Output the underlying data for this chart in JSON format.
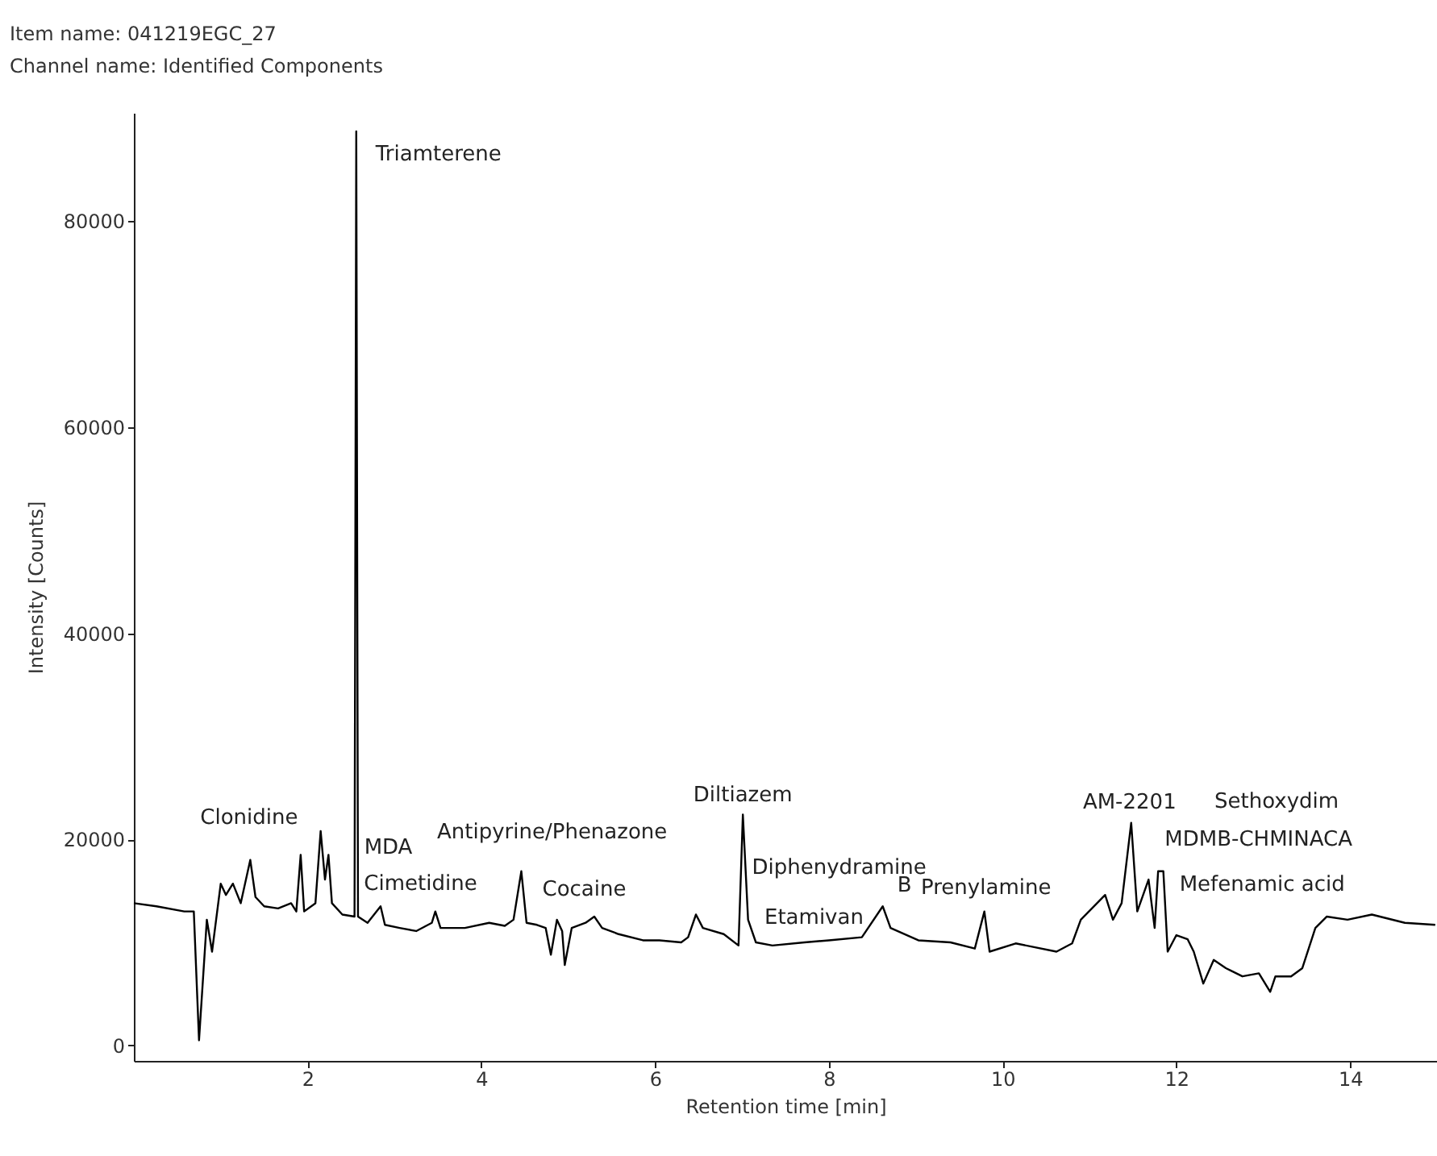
{
  "chart_data": {
    "type": "line",
    "title": "Item name: 041219EGC_27",
    "subtitle": "Channel name: Identified Components",
    "xlabel": "Retention time [min]",
    "ylabel": "Intensity [Counts]",
    "xlim": [
      0,
      15
    ],
    "ylim": [
      -1500,
      90500
    ],
    "xticks": [
      2,
      4,
      6,
      8,
      10,
      12,
      14
    ],
    "yticks": [
      0,
      20000,
      40000,
      60000,
      80000
    ],
    "grid": false,
    "legend": false,
    "marker": "none",
    "line_style": "solid",
    "x": [
      0,
      0.26,
      0.58,
      0.69,
      0.75,
      0.84,
      0.9,
      1.0,
      1.06,
      1.14,
      1.23,
      1.34,
      1.4,
      1.5,
      1.66,
      1.81,
      1.87,
      1.92,
      1.96,
      2.09,
      2.15,
      2.2,
      2.24,
      2.28,
      2.4,
      2.54,
      2.56,
      2.58,
      2.69,
      2.84,
      2.89,
      3.06,
      3.25,
      3.43,
      3.47,
      3.53,
      3.81,
      4.09,
      4.27,
      4.37,
      4.46,
      4.52,
      4.64,
      4.74,
      4.8,
      4.87,
      4.93,
      4.96,
      5.04,
      5.2,
      5.3,
      5.39,
      5.58,
      5.86,
      6.05,
      6.3,
      6.38,
      6.47,
      6.55,
      6.79,
      6.96,
      7.01,
      7.07,
      7.16,
      7.35,
      7.72,
      8.0,
      8.38,
      8.62,
      8.71,
      9.03,
      9.4,
      9.68,
      9.79,
      9.85,
      10.15,
      10.62,
      10.8,
      10.9,
      11.18,
      11.27,
      11.37,
      11.48,
      11.55,
      11.68,
      11.75,
      11.79,
      11.85,
      11.9,
      12.0,
      12.13,
      12.2,
      12.31,
      12.43,
      12.57,
      12.76,
      12.95,
      13.08,
      13.14,
      13.32,
      13.45,
      13.6,
      13.73,
      13.97,
      14.25,
      14.63,
      14.98
    ],
    "series": [
      {
        "color": "#000000",
        "values": [
          13800,
          13500,
          13000,
          13000,
          500,
          12200,
          9100,
          15700,
          14600,
          15700,
          13800,
          18000,
          14400,
          13500,
          13300,
          13800,
          13000,
          18500,
          13000,
          13800,
          20800,
          16100,
          18500,
          13800,
          12700,
          12500,
          88700,
          12500,
          11900,
          13500,
          11700,
          11400,
          11100,
          11900,
          13000,
          11400,
          11400,
          11900,
          11600,
          12200,
          16900,
          11900,
          11700,
          11400,
          8800,
          12200,
          11100,
          7800,
          11400,
          11900,
          12500,
          11400,
          10800,
          10200,
          10200,
          10000,
          10500,
          12700,
          11400,
          10800,
          9700,
          22400,
          12200,
          10000,
          9700,
          10000,
          10200,
          10500,
          13500,
          11400,
          10200,
          10000,
          9400,
          13000,
          9100,
          9900,
          9100,
          9900,
          12200,
          14600,
          12200,
          13800,
          21600,
          13000,
          16100,
          11400,
          16900,
          16900,
          9100,
          10700,
          10300,
          9100,
          6000,
          8300,
          7500,
          6700,
          7000,
          5200,
          6700,
          6700,
          7500,
          11400,
          12500,
          12200,
          12700,
          11900,
          11700
        ]
      }
    ],
    "annotations": [
      {
        "text": "Triamterene",
        "x": 2.56,
        "y": 88700
      },
      {
        "text": "Clonidine",
        "x": 1.92,
        "y": 18500
      },
      {
        "text": "MDA",
        "x": 2.15,
        "y": 20800
      },
      {
        "text": "Cimetidine",
        "x": 2.24,
        "y": 18500
      },
      "Antipyrine/Phenazone",
      {
        "text": "Cocaine",
        "x": 4.46,
        "y": 16900
      },
      {
        "text": "Diltiazem",
        "x": 7.01,
        "y": 22400
      },
      {
        "text": "Diphenydramine",
        "x": 7.04,
        "y": 17300
      },
      "Etamivan",
      {
        "text": "B",
        "x": 8.62,
        "y": 13500
      },
      {
        "text": "Prenylamine",
        "x": 9.79,
        "y": 13000
      },
      {
        "text": "AM-2201",
        "x": 11.48,
        "y": 21600
      },
      "Sethoxydim",
      {
        "text": "MDMB-CHMINACA",
        "x": 11.68,
        "y": 16100
      },
      {
        "text": "Mefenamic acid",
        "x": 11.85,
        "y": 16900
      }
    ]
  }
}
